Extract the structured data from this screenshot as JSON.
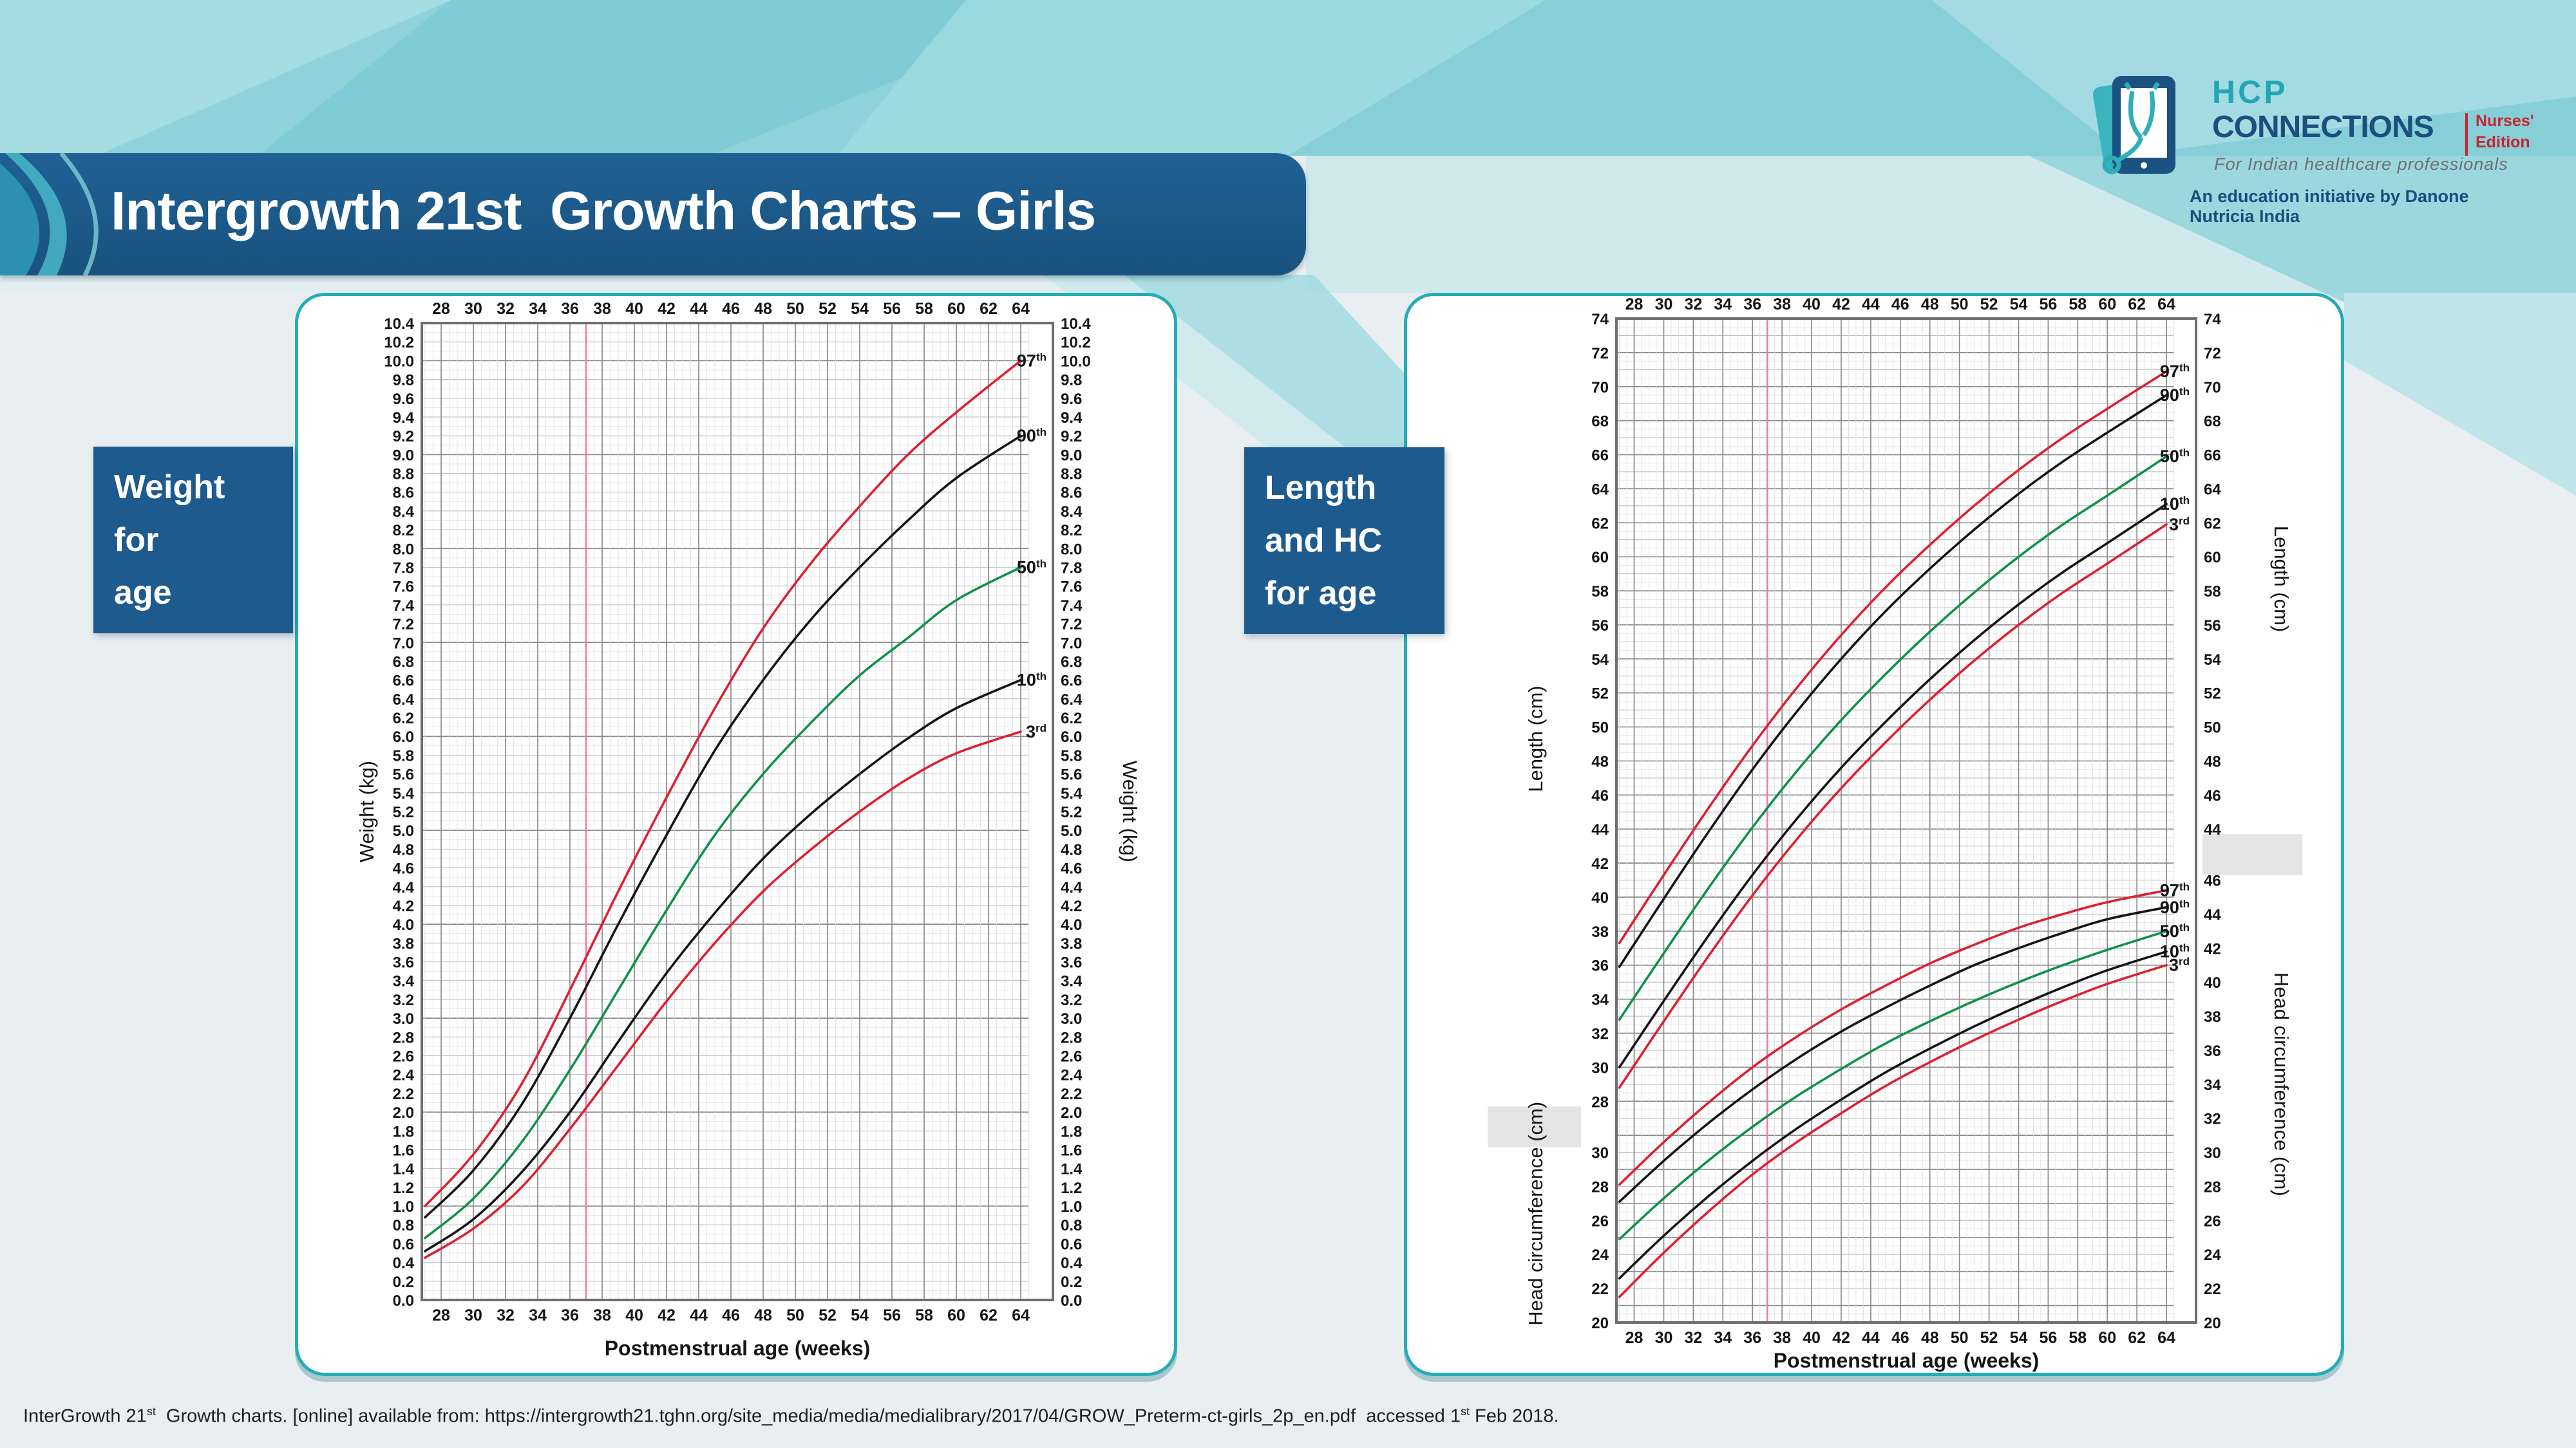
{
  "page": {
    "title": "Intergrowth 21st  Growth Charts – Girls"
  },
  "logo": {
    "hcp": "HCP",
    "connections": "CONNECTIONS",
    "nurses_line1": "Nurses'",
    "nurses_line2": "Edition",
    "tagline": "For Indian healthcare professionals",
    "initiative": "An education initiative by Danone Nutricia India",
    "icon": "tablet-with-stethoscope-icon"
  },
  "left_panel_label": {
    "lines": [
      "Weight",
      "for",
      "age"
    ]
  },
  "right_panel_label": {
    "lines": [
      "Length",
      "and HC",
      "for age"
    ]
  },
  "citation": {
    "part1": "InterGrowth 21",
    "sup1": "st",
    "part2": "  Growth charts. [online] available from: https://intergrowth21.tghn.org/site_media/media/medialibrary/2017/04/GROW_Preterm-ct-girls_2p_en.pdf  accessed 1",
    "sup2": "st",
    "part3": " Feb 2018."
  },
  "colors": {
    "banner_blue": "#1d5b8e",
    "card_border_teal": "#25acb8",
    "percentile_red": "#df1f2f",
    "percentile_green": "#0f9147",
    "percentile_black": "#151515",
    "term_line_pink": "#f27ca9",
    "band_gray": "#e4e4e4"
  },
  "chart_data": [
    {
      "type": "line",
      "title": "Weight for age",
      "xlabel": "Postmenstrual age (weeks)",
      "x_domain": [
        26.8,
        66.0
      ],
      "x_grid": {
        "from": 27,
        "to": 64.5,
        "minor_step": 0.5
      },
      "x_ticks": {
        "from": 28,
        "to": 64,
        "step": 2
      },
      "units_total": 52,
      "grid_u": {
        "minor": 0.5,
        "mid": 1,
        "major": 5,
        "major_offset": 2
      },
      "vline": {
        "x": 37,
        "color": "#f27ca9",
        "meaning": "term (37 weeks)"
      },
      "scales": [
        {
          "id": "w",
          "axis_label": "Weight (kg)",
          "v_top": 10.4,
          "v_bottom": 0.0,
          "u_top": 0,
          "u_bottom": 52,
          "dp": 1,
          "ticks_left": {
            "from": 0.0,
            "to": 10.4,
            "step": 0.2
          },
          "ticks_right": {
            "from": 0.0,
            "to": 10.4,
            "step": 0.2
          },
          "title_left_center_u": 26,
          "title_right_center_u": 26
        }
      ],
      "x": [
        27,
        30,
        33,
        36,
        39,
        42,
        45,
        48,
        51,
        54,
        57,
        60,
        64
      ],
      "series": [
        {
          "name": "97th centile",
          "label": [
            "97",
            "th"
          ],
          "color": "#df1f2f",
          "scale": "w",
          "values": [
            1.0,
            1.55,
            2.3,
            3.3,
            4.35,
            5.35,
            6.3,
            7.15,
            7.85,
            8.45,
            9.0,
            9.45,
            10.0
          ]
        },
        {
          "name": "90th centile",
          "label": [
            "90",
            "th"
          ],
          "color": "#151515",
          "scale": "w",
          "values": [
            0.88,
            1.38,
            2.08,
            3.0,
            4.0,
            4.95,
            5.85,
            6.6,
            7.25,
            7.8,
            8.3,
            8.75,
            9.2
          ]
        },
        {
          "name": "50th centile",
          "label": [
            "50",
            "th"
          ],
          "color": "#0f9147",
          "scale": "w",
          "values": [
            0.66,
            1.08,
            1.68,
            2.45,
            3.3,
            4.15,
            4.95,
            5.6,
            6.15,
            6.65,
            7.05,
            7.45,
            7.8
          ]
        },
        {
          "name": "10th centile",
          "label": [
            "10",
            "th"
          ],
          "color": "#151515",
          "scale": "w",
          "values": [
            0.52,
            0.86,
            1.36,
            2.0,
            2.75,
            3.48,
            4.12,
            4.7,
            5.18,
            5.6,
            5.98,
            6.3,
            6.6
          ]
        },
        {
          "name": "3rd centile",
          "label": [
            "3",
            "rd"
          ],
          "color": "#df1f2f",
          "scale": "w",
          "values": [
            0.45,
            0.76,
            1.2,
            1.82,
            2.5,
            3.18,
            3.8,
            4.35,
            4.8,
            5.2,
            5.55,
            5.82,
            6.05
          ]
        }
      ]
    },
    {
      "type": "line",
      "title": "Length and HC for age",
      "xlabel": "Postmenstrual age (weeks)",
      "x_domain": [
        26.8,
        66.0
      ],
      "x_grid": {
        "from": 27,
        "to": 64.5,
        "minor_step": 0.5
      },
      "x_ticks": {
        "from": 28,
        "to": 64,
        "step": 2
      },
      "units_total": 59,
      "grid_u": {
        "minor": 0.5,
        "mid": 1,
        "major": 2,
        "major_offset": 0
      },
      "vline": {
        "x": 37,
        "color": "#f27ca9",
        "meaning": "term (37 weeks)"
      },
      "scales": [
        {
          "id": "length",
          "axis_label": "Length (cm)",
          "v_top": 74,
          "v_bottom": 28,
          "u_top": 0,
          "u_bottom": 46,
          "dp": 0,
          "ticks_left": {
            "from": 28,
            "to": 74,
            "step": 2
          },
          "ticks_right": {
            "from": 44,
            "to": 74,
            "step": 2
          },
          "title_left_center_u": 24.7,
          "title_right_center_u": 15.3
        },
        {
          "id": "hc",
          "axis_label": "Head circumference (cm)",
          "v_top": 46,
          "v_bottom": 20,
          "u_top": 33,
          "u_bottom": 59,
          "dp": 0,
          "ticks_left": {
            "from": 20,
            "to": 30,
            "step": 2
          },
          "ticks_right": {
            "from": 20,
            "to": 46,
            "step": 2
          },
          "title_left_center_u": 52.6,
          "title_right_center_u": 45.0
        }
      ],
      "bands": [
        {
          "side": "left",
          "u0": 46.3,
          "u1": 48.7
        },
        {
          "side": "right",
          "u0": 30.3,
          "u1": 32.7
        }
      ],
      "x": [
        27,
        30,
        33,
        36,
        39,
        42,
        45,
        48,
        51,
        54,
        57,
        60,
        64
      ],
      "series": [
        {
          "name": "length 97th centile",
          "label": [
            "97",
            "th"
          ],
          "color": "#df1f2f",
          "scale": "length",
          "values": [
            37.3,
            41.3,
            45.2,
            48.9,
            52.3,
            55.4,
            58.2,
            60.7,
            63.0,
            65.1,
            67.0,
            68.7,
            70.9
          ]
        },
        {
          "name": "length 90th centile",
          "label": [
            "90",
            "th"
          ],
          "color": "#151515",
          "scale": "length",
          "values": [
            35.9,
            39.9,
            43.8,
            47.5,
            50.9,
            54.0,
            56.8,
            59.3,
            61.6,
            63.7,
            65.6,
            67.3,
            69.5
          ]
        },
        {
          "name": "length 50th centile",
          "label": [
            "50",
            "th"
          ],
          "color": "#0f9147",
          "scale": "length",
          "values": [
            32.8,
            36.7,
            40.5,
            44.1,
            47.4,
            50.4,
            53.1,
            55.6,
            57.9,
            60.0,
            61.9,
            63.6,
            65.9
          ]
        },
        {
          "name": "length 10th centile",
          "label": [
            "10",
            "th"
          ],
          "color": "#151515",
          "scale": "length",
          "values": [
            30.0,
            33.9,
            37.7,
            41.3,
            44.6,
            47.6,
            50.3,
            52.8,
            55.1,
            57.2,
            59.1,
            60.8,
            63.1
          ]
        },
        {
          "name": "length 3rd centile",
          "label": [
            "3",
            "rd"
          ],
          "color": "#df1f2f",
          "scale": "length",
          "values": [
            28.8,
            32.7,
            36.5,
            40.1,
            43.4,
            46.4,
            49.1,
            51.6,
            53.9,
            56.0,
            57.9,
            59.6,
            61.9
          ]
        },
        {
          "name": "HC 97th centile",
          "label": [
            "97",
            "th"
          ],
          "color": "#df1f2f",
          "scale": "hc",
          "values": [
            28.1,
            30.6,
            32.9,
            35.0,
            36.8,
            38.4,
            39.8,
            41.1,
            42.2,
            43.2,
            44.0,
            44.7,
            45.4
          ]
        },
        {
          "name": "HC 90th centile",
          "label": [
            "90",
            "th"
          ],
          "color": "#151515",
          "scale": "hc",
          "values": [
            27.1,
            29.5,
            31.7,
            33.7,
            35.5,
            37.1,
            38.5,
            39.8,
            41.0,
            42.0,
            42.9,
            43.7,
            44.4
          ]
        },
        {
          "name": "HC 50th centile",
          "label": [
            "50",
            "th"
          ],
          "color": "#0f9147",
          "scale": "hc",
          "values": [
            24.9,
            27.3,
            29.5,
            31.5,
            33.3,
            34.9,
            36.4,
            37.7,
            38.9,
            40.0,
            41.0,
            41.9,
            43.0
          ]
        },
        {
          "name": "HC 10th centile",
          "label": [
            "10",
            "th"
          ],
          "color": "#151515",
          "scale": "hc",
          "values": [
            22.6,
            25.1,
            27.4,
            29.5,
            31.4,
            33.1,
            34.7,
            36.1,
            37.4,
            38.6,
            39.7,
            40.7,
            41.8
          ]
        },
        {
          "name": "HC 3rd centile",
          "label": [
            "3",
            "rd"
          ],
          "color": "#df1f2f",
          "scale": "hc",
          "values": [
            21.5,
            24.1,
            26.5,
            28.7,
            30.6,
            32.3,
            33.9,
            35.3,
            36.6,
            37.8,
            38.9,
            39.9,
            41.0
          ]
        }
      ]
    }
  ]
}
